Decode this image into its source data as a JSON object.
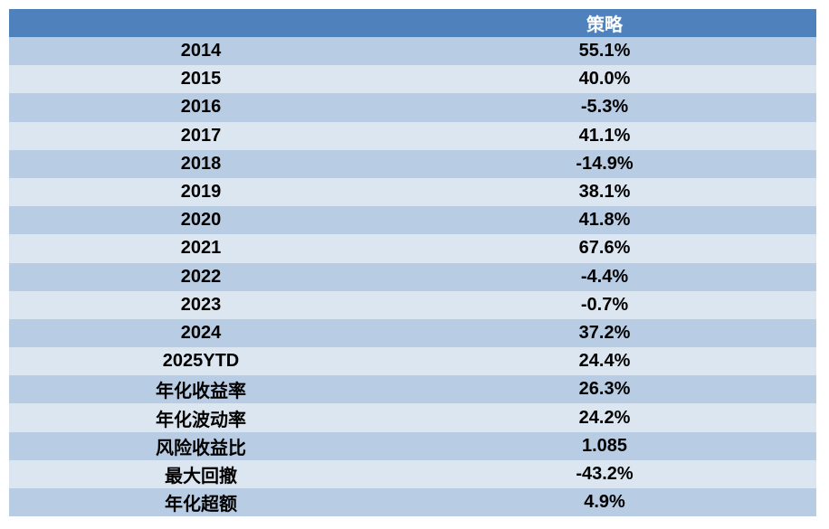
{
  "table": {
    "header": {
      "label_col": "",
      "value_col": "策略"
    },
    "rows": [
      {
        "label": "2014",
        "value": "55.1%"
      },
      {
        "label": "2015",
        "value": "40.0%"
      },
      {
        "label": "2016",
        "value": "-5.3%"
      },
      {
        "label": "2017",
        "value": "41.1%"
      },
      {
        "label": "2018",
        "value": "-14.9%"
      },
      {
        "label": "2019",
        "value": "38.1%"
      },
      {
        "label": "2020",
        "value": "41.8%"
      },
      {
        "label": "2021",
        "value": "67.6%"
      },
      {
        "label": "2022",
        "value": "-4.4%"
      },
      {
        "label": "2023",
        "value": "-0.7%"
      },
      {
        "label": "2024",
        "value": "37.2%"
      },
      {
        "label": "2025YTD",
        "value": "24.4%"
      },
      {
        "label": "年化收益率",
        "value": "26.3%"
      },
      {
        "label": "年化波动率",
        "value": "24.2%"
      },
      {
        "label": "风险收益比",
        "value": "1.085"
      },
      {
        "label": "最大回撤",
        "value": "-43.2%"
      },
      {
        "label": "年化超额",
        "value": "4.9%"
      }
    ]
  },
  "colors": {
    "header_bg": "#4F81BD",
    "header_text": "#FFFFFF",
    "row_dark_bg": "#B8CCE4",
    "row_light_bg": "#DCE6F1",
    "body_text": "#000000",
    "page_bg": "#FFFFFF"
  },
  "chart_data": {
    "type": "table",
    "columns": [
      "",
      "策略"
    ],
    "rows": [
      [
        "2014",
        "55.1%"
      ],
      [
        "2015",
        "40.0%"
      ],
      [
        "2016",
        "-5.3%"
      ],
      [
        "2017",
        "41.1%"
      ],
      [
        "2018",
        "-14.9%"
      ],
      [
        "2019",
        "38.1%"
      ],
      [
        "2020",
        "41.8%"
      ],
      [
        "2021",
        "67.6%"
      ],
      [
        "2022",
        "-4.4%"
      ],
      [
        "2023",
        "-0.7%"
      ],
      [
        "2024",
        "37.2%"
      ],
      [
        "2025YTD",
        "24.4%"
      ],
      [
        "年化收益率",
        "26.3%"
      ],
      [
        "年化波动率",
        "24.2%"
      ],
      [
        "风险收益比",
        "1.085"
      ],
      [
        "最大回撤",
        "-43.2%"
      ],
      [
        "年化超额",
        "4.9%"
      ]
    ],
    "categories": [
      "2014",
      "2015",
      "2016",
      "2017",
      "2018",
      "2019",
      "2020",
      "2021",
      "2022",
      "2023",
      "2024",
      "2025YTD",
      "年化收益率",
      "年化波动率",
      "风险收益比",
      "最大回撤",
      "年化超额"
    ],
    "values": [
      55.1,
      40.0,
      -5.3,
      41.1,
      -14.9,
      38.1,
      41.8,
      67.6,
      -4.4,
      -0.7,
      37.2,
      24.4,
      26.3,
      24.2,
      1.085,
      -43.2,
      4.9
    ],
    "series": [
      {
        "name": "策略",
        "values": [
          55.1,
          40.0,
          -5.3,
          41.1,
          -14.9,
          38.1,
          41.8,
          67.6,
          -4.4,
          -0.7,
          37.2,
          24.4,
          26.3,
          24.2,
          1.085,
          -43.2,
          4.9
        ]
      }
    ],
    "title": "",
    "legend_position": "none",
    "grid": false
  }
}
